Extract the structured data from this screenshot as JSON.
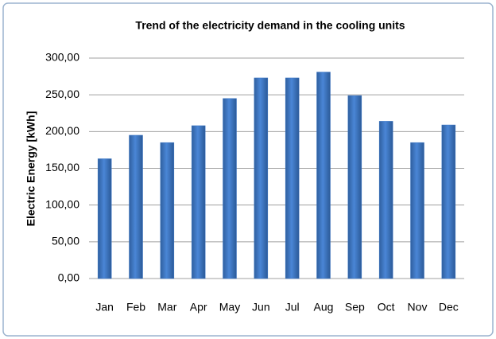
{
  "chart_data": {
    "type": "bar",
    "title": "Trend of the electricity demand in the cooling units",
    "y_label": "Electric Energy [kWh]",
    "categories": [
      "Jan",
      "Feb",
      "Mar",
      "Apr",
      "May",
      "Jun",
      "Jul",
      "Aug",
      "Sep",
      "Oct",
      "Nov",
      "Dec"
    ],
    "values": [
      163,
      195,
      185,
      208,
      245,
      273,
      273,
      281,
      249,
      214,
      185,
      209
    ],
    "color": "#3a75c4",
    "ylim": [
      0,
      300
    ],
    "yticks": [
      {
        "value": 0,
        "label": "0,00"
      },
      {
        "value": 50,
        "label": "50,00"
      },
      {
        "value": 100,
        "label": "100,00"
      },
      {
        "value": 150,
        "label": "150,00"
      },
      {
        "value": 200,
        "label": "200,00"
      },
      {
        "value": 250,
        "label": "250,00"
      },
      {
        "value": 300,
        "label": "300,00"
      }
    ],
    "grid": true
  }
}
